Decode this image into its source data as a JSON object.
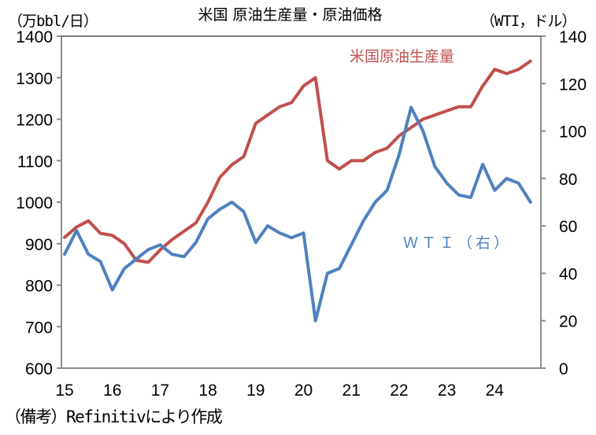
{
  "header": {
    "title": "米国 原油生産量・原油価格",
    "left_unit": "（万bbl/日）",
    "right_unit": "（WTI，ドル）"
  },
  "footer": {
    "note": "（備考）Refinitivにより作成"
  },
  "colors": {
    "production": "#C0504D",
    "wti": "#4F81BD",
    "axis": "#8C8C8C"
  },
  "legend": {
    "production_label": "米国原油生産量",
    "wti_label": "ＷＴＩ（右）"
  },
  "axes": {
    "left_ticks": [
      "1400",
      "1300",
      "1200",
      "1100",
      "1000",
      "900",
      "800",
      "700",
      "600"
    ],
    "right_ticks": [
      "140",
      "120",
      "100",
      "80",
      "60",
      "40",
      "20",
      "0"
    ],
    "x_ticks": [
      "15",
      "16",
      "17",
      "18",
      "19",
      "20",
      "21",
      "22",
      "23",
      "24"
    ]
  },
  "chart_data": {
    "type": "line",
    "title": "米国 原油生産量・原油価格",
    "xlabel": "",
    "ylabel": "万bbl/日",
    "ylabel_right": "WTI, ドル",
    "ylim": [
      600,
      1400
    ],
    "ylim_right": [
      0,
      140
    ],
    "x_ticks": [
      "15",
      "16",
      "17",
      "18",
      "19",
      "20",
      "21",
      "22",
      "23",
      "24"
    ],
    "grid": false,
    "legend_position": "inline labels",
    "x": [
      2015.0,
      2015.25,
      2015.5,
      2015.75,
      2016.0,
      2016.25,
      2016.5,
      2016.75,
      2017.0,
      2017.25,
      2017.5,
      2017.75,
      2018.0,
      2018.25,
      2018.5,
      2018.75,
      2019.0,
      2019.25,
      2019.5,
      2019.75,
      2020.0,
      2020.25,
      2020.5,
      2020.75,
      2021.0,
      2021.25,
      2021.5,
      2021.75,
      2022.0,
      2022.25,
      2022.5,
      2022.75,
      2023.0,
      2023.25,
      2023.5,
      2023.75,
      2024.0,
      2024.25,
      2024.5,
      2024.75
    ],
    "series": [
      {
        "name": "米国原油生産量",
        "axis": "left",
        "unit": "万bbl/日",
        "values": [
          915,
          940,
          955,
          925,
          920,
          900,
          860,
          855,
          885,
          910,
          930,
          950,
          1000,
          1060,
          1090,
          1110,
          1190,
          1210,
          1230,
          1240,
          1280,
          1300,
          1100,
          1080,
          1100,
          1100,
          1120,
          1130,
          1160,
          1180,
          1200,
          1210,
          1220,
          1230,
          1230,
          1280,
          1320,
          1310,
          1320,
          1340
        ]
      },
      {
        "name": "WTI（右）",
        "axis": "right",
        "unit": "ドル",
        "values": [
          48,
          58,
          48,
          45,
          33,
          42,
          46,
          50,
          52,
          48,
          47,
          53,
          63,
          67,
          70,
          66,
          53,
          60,
          57,
          55,
          57,
          20,
          40,
          42,
          52,
          62,
          70,
          75,
          90,
          110,
          100,
          85,
          78,
          73,
          72,
          86,
          75,
          80,
          78,
          70
        ]
      }
    ]
  }
}
